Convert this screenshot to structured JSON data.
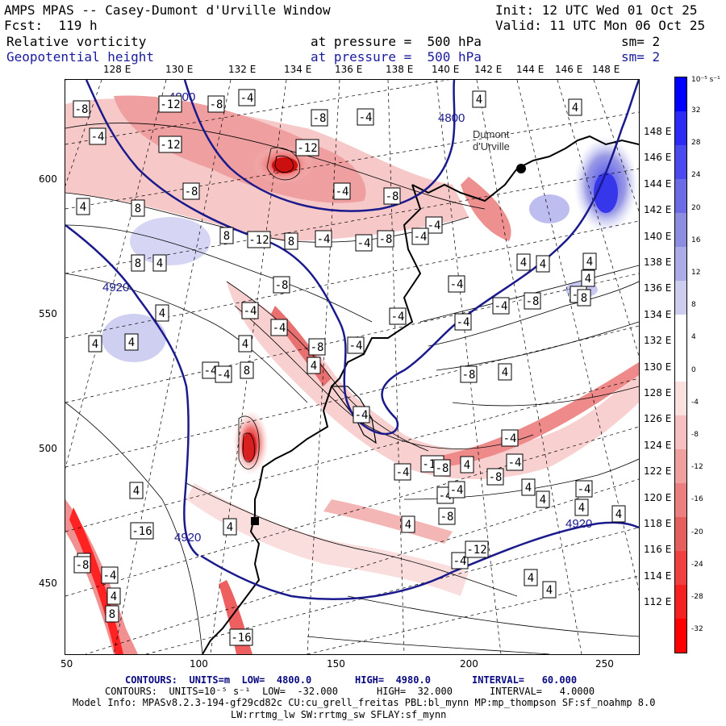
{
  "header": {
    "title": "AMPS MPAS -- Casey-Dumont d'Urville Window",
    "fcst": "Fcst:  119 h",
    "init": "Init: 12 UTC Wed 01 Oct 25",
    "valid": "Valid: 11 UTC Mon 06 Oct 25",
    "field1_name": "Relative vorticity",
    "field1_level": "at pressure =  500 hPa",
    "field1_sm": "sm= 2",
    "field2_name": "Geopotential height",
    "field2_level": "at pressure =  500 hPa",
    "field2_sm": "sm= 2"
  },
  "axes": {
    "top_lon": [
      "128 E",
      "130 E",
      "132 E",
      "134 E",
      "136 E",
      "138 E",
      "140 E",
      "142 E",
      "144 E",
      "146 E",
      "148 E"
    ],
    "right_lat": [
      "148 E",
      "146 E",
      "144 E",
      "142 E",
      "140 E",
      "138 E",
      "136 E",
      "134 E",
      "132 E",
      "130 E",
      "128 E",
      "126 E",
      "124 E",
      "122 E",
      "120 E",
      "118 E",
      "116 E",
      "114 E",
      "112 E"
    ],
    "y_ticks": [
      "600",
      "550",
      "500",
      "450"
    ],
    "x_ticks": [
      "50",
      "100",
      "150",
      "200",
      "250"
    ]
  },
  "colorbar": {
    "unit": "10⁻⁵ s⁻¹",
    "labels": [
      "32",
      "28",
      "24",
      "20",
      "16",
      "12",
      "8",
      "4",
      "0",
      "-4",
      "-8",
      "-12",
      "-16",
      "-20",
      "-24",
      "-28",
      "-32"
    ],
    "colors": [
      "#0000ff",
      "#2b2bf5",
      "#4a4aee",
      "#6b6be6",
      "#8c8ce0",
      "#ababe8",
      "#cdcdf0",
      "#ffffff",
      "#ffffff",
      "#fbe0e0",
      "#f6c0c0",
      "#f09f9f",
      "#eb7f7f",
      "#e65f5f",
      "#f03f3f",
      "#f52020",
      "#ff0000"
    ]
  },
  "map_labels": {
    "height": [
      "4800",
      "4800",
      "4920",
      "4920",
      "4920"
    ],
    "station": "Dumont\nd'Urville",
    "vort_boxes": [
      "-8",
      "-12",
      "-8",
      "-4",
      "-8",
      "-4",
      "-4",
      "4",
      "-4",
      "4",
      "-12",
      "-12",
      "-8",
      "-4",
      "-8",
      "-8",
      "-4",
      "-4",
      "4",
      "8",
      "8",
      "4",
      "8",
      "8",
      "-4",
      "-12",
      "-8",
      "-4",
      "4",
      "4",
      "-4",
      "-8",
      "4",
      "-4",
      "4",
      "-4",
      "-4",
      "-12",
      "4",
      "4",
      "4",
      "-4",
      "8",
      "-8",
      "-4",
      "4",
      "-4",
      "-4",
      "4",
      "4",
      "-4",
      "8",
      "-4",
      "-8",
      "4",
      "-4",
      "-8",
      "-4",
      "-4",
      "4",
      "4",
      "-4",
      "-4",
      "-8",
      "4",
      "-4",
      "-8",
      "4",
      "-4",
      "4",
      "-16",
      "-4",
      "4",
      "4",
      "-12",
      "4",
      "-16",
      "4",
      "4",
      "-8",
      "8",
      "4"
    ]
  },
  "footer": {
    "line1a": "CONTOURS:  UNITS=m  LOW=  4800.0",
    "line1b": "HIGH=  4980.0",
    "line1c": "INTERVAL=   60.000",
    "line2a": "CONTOURS:  UNITS=10⁻⁵ s⁻¹  LOW=  -32.000",
    "line2b": "HIGH=  32.000",
    "line2c": "INTERVAL=   4.0000",
    "line3": "Model Info: MPASv8.2.3-194-gf29cd82c CU:cu_grell_freitas PBL:bl_mynn MP:mp_thompson SF:sf_noahmp 8.0",
    "line4": "LW:rrtmg_lw SW:rrtmg_sw SFLAY:sf_mynn"
  }
}
